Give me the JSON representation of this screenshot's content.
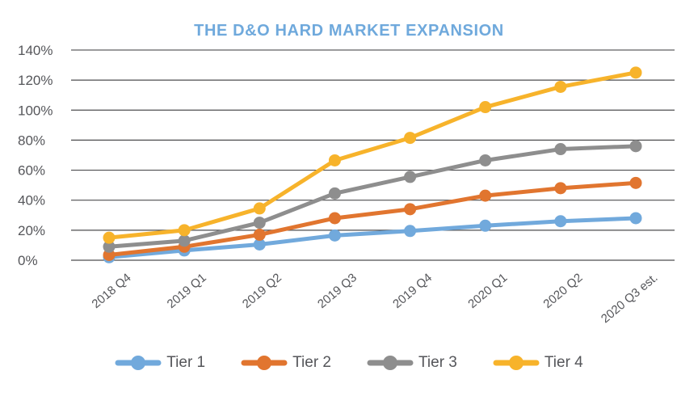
{
  "chart_data": {
    "type": "line",
    "title": "THE D&O HARD MARKET EXPANSION",
    "categories": [
      "2018 Q4",
      "2019 Q1",
      "2019 Q2",
      "2019 Q3",
      "2019 Q4",
      "2020 Q1",
      "2020 Q2",
      "2020 Q3 est."
    ],
    "series": [
      {
        "name": "Tier 1",
        "color": "#71A9DC",
        "values": [
          2,
          6.5,
          10.5,
          16.5,
          19.5,
          23,
          26,
          28
        ]
      },
      {
        "name": "Tier 2",
        "color": "#E1752F",
        "values": [
          3.5,
          9,
          17,
          28,
          34,
          43,
          48,
          51.5
        ]
      },
      {
        "name": "Tier 3",
        "color": "#8E8E8E",
        "values": [
          9,
          13,
          25,
          44.5,
          55.5,
          66.5,
          74,
          76
        ]
      },
      {
        "name": "Tier 4",
        "color": "#F7B32B",
        "values": [
          15,
          20,
          34.5,
          66.5,
          81.5,
          102,
          115.5,
          125
        ]
      }
    ],
    "ylim": [
      0,
      140
    ],
    "ytick_step": 20,
    "ytick_labels": [
      "0%",
      "20%",
      "40%",
      "60%",
      "80%",
      "100%",
      "120%",
      "140%"
    ],
    "grid": true,
    "legend_position": "bottom",
    "colors": {
      "title_text": "#6FA9DC",
      "axis_text": "#55565A",
      "gridline": "#4D4D4F",
      "background": "#FFFFFF"
    }
  }
}
